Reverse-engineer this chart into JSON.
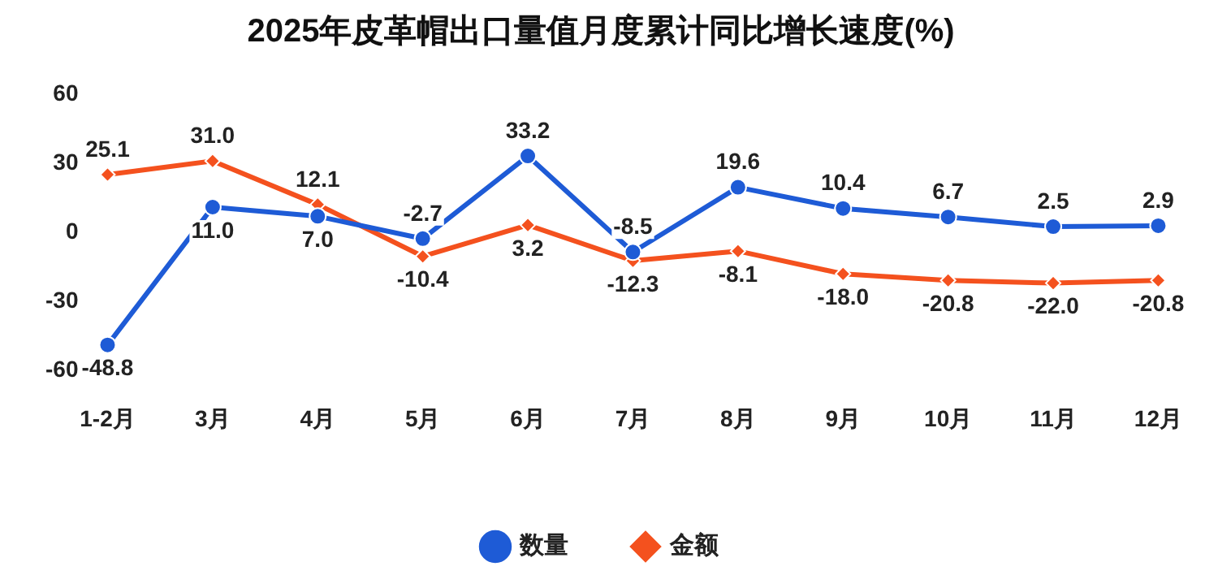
{
  "chart_data": {
    "type": "line",
    "title": "2025年皮革帽出口量值月度累计同比增长速度(%)",
    "categories": [
      "1-2月",
      "3月",
      "4月",
      "5月",
      "6月",
      "7月",
      "8月",
      "9月",
      "10月",
      "11月",
      "12月"
    ],
    "series": [
      {
        "name": "数量",
        "color": "#1e5bd6",
        "marker": "circle",
        "values": [
          -48.8,
          11.0,
          7.0,
          -2.7,
          33.2,
          -8.5,
          19.6,
          10.4,
          6.7,
          2.5,
          2.9
        ],
        "value_labels": [
          "-48.8",
          "11.0",
          "7.0",
          "-2.7",
          "33.2",
          "-8.5",
          "19.6",
          "10.4",
          "6.7",
          "2.5",
          "2.9"
        ]
      },
      {
        "name": "金额",
        "color": "#f4511e",
        "marker": "diamond",
        "values": [
          25.1,
          31.0,
          12.1,
          -10.4,
          3.2,
          -12.3,
          -8.1,
          -18.0,
          -20.8,
          -22.0,
          -20.8
        ],
        "value_labels": [
          "25.1",
          "31.0",
          "12.1",
          "-10.4",
          "3.2",
          "-12.3",
          "-8.1",
          "-18.0",
          "-20.8",
          "-22.0",
          "-20.8"
        ]
      }
    ],
    "ylim": [
      -60,
      60
    ],
    "yticks": [
      -60,
      -30,
      0,
      30,
      60
    ],
    "grid": false,
    "legend": "bottom",
    "line_style": "solid"
  }
}
